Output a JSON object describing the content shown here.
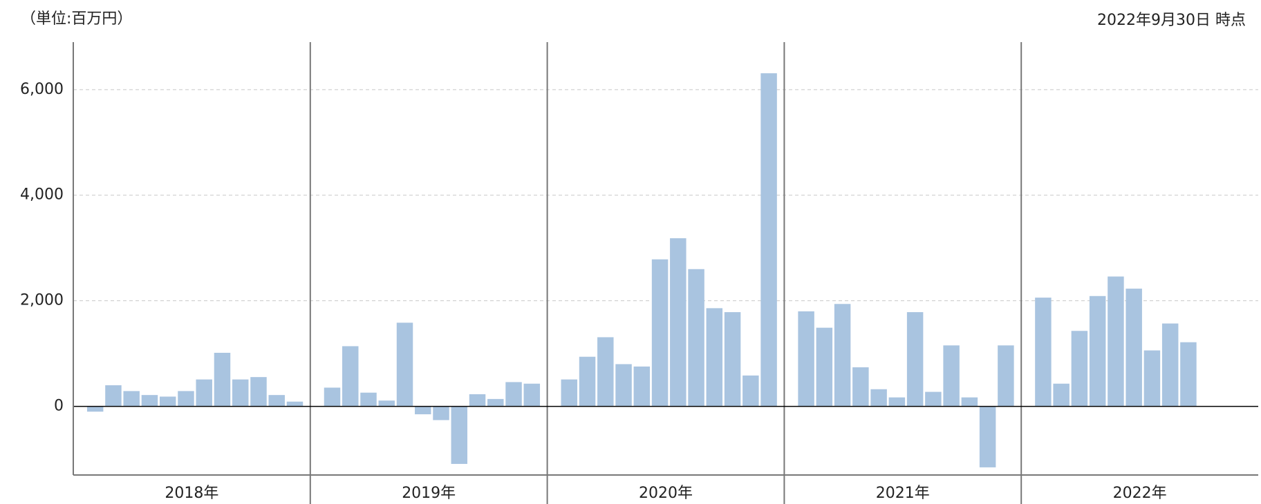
{
  "chart_data": {
    "type": "bar",
    "unit_note": "（単位:百万円）",
    "as_of": "2022年9月30日 時点",
    "color": "#a9c4e0",
    "ylim": [
      -1300,
      6900
    ],
    "yticks": [
      0,
      {
        "value": 2000,
        "label": "2,000"
      },
      {
        "value": 4000,
        "label": "4,000"
      },
      {
        "value": 6000,
        "label": "6,000"
      }
    ],
    "grid": true,
    "groups": [
      {
        "label": "2018年",
        "values": [
          -100,
          400,
          290,
          215,
          185,
          290,
          510,
          1015,
          510,
          555,
          215,
          90
        ]
      },
      {
        "label": "2019年",
        "values": [
          355,
          1140,
          260,
          110,
          1585,
          -150,
          -260,
          -1090,
          230,
          140,
          460,
          430
        ]
      },
      {
        "label": "2020年",
        "values": [
          510,
          940,
          1310,
          800,
          755,
          2785,
          3185,
          2600,
          1860,
          1785,
          585,
          6310
        ]
      },
      {
        "label": "2021年",
        "values": [
          1800,
          1490,
          1940,
          740,
          325,
          170,
          1785,
          275,
          1155,
          170,
          -1155,
          1155
        ]
      },
      {
        "label": "2022年",
        "values": [
          2060,
          430,
          1430,
          2090,
          2460,
          2230,
          1060,
          1570,
          1215
        ]
      }
    ]
  }
}
